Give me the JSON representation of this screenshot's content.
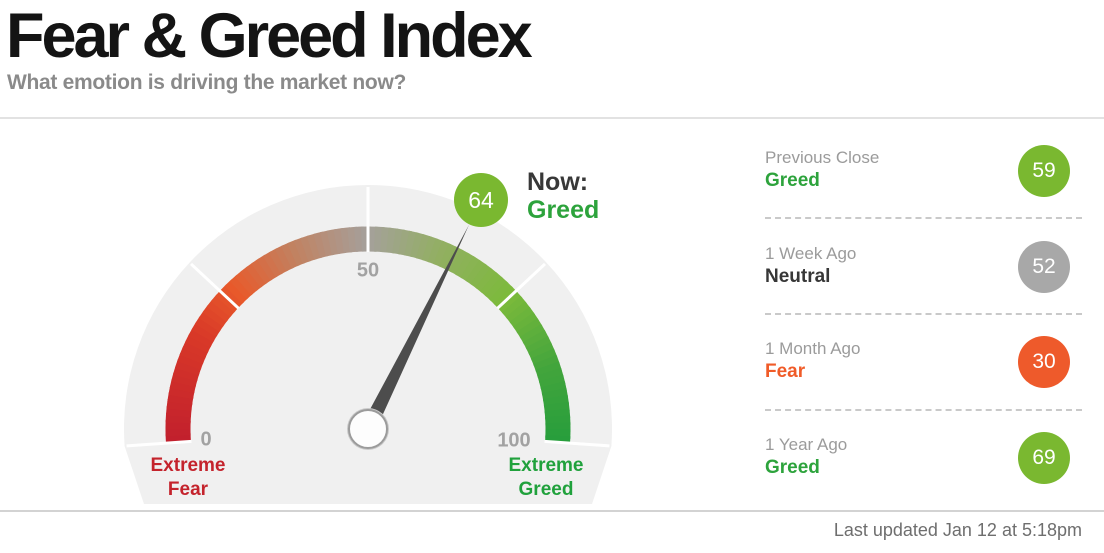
{
  "header": {
    "title": "Fear & Greed Index",
    "subtitle": "What emotion is driving the market now?"
  },
  "gauge": {
    "value": 64,
    "badge_text": "64",
    "now_prefix": "Now:",
    "now_mood": "Greed",
    "tick_min_label": "0",
    "tick_mid_label": "50",
    "tick_max_label": "100",
    "left_caption": "Extreme Fear",
    "right_caption": "Extreme Greed"
  },
  "sidebar": {
    "items": [
      {
        "period": "Previous Close",
        "mood": "Greed",
        "value": "59",
        "mood_color": "#2da33c",
        "circle_color": "#7ab830"
      },
      {
        "period": "1 Week Ago",
        "mood": "Neutral",
        "value": "52",
        "mood_color": "#373737",
        "circle_color": "#a8a8a8"
      },
      {
        "period": "1 Month Ago",
        "mood": "Fear",
        "value": "30",
        "mood_color": "#f05b28",
        "circle_color": "#ee5a2b"
      },
      {
        "period": "1 Year Ago",
        "mood": "Greed",
        "value": "69",
        "mood_color": "#2da33c",
        "circle_color": "#7ab830"
      }
    ]
  },
  "footer": {
    "last_updated": "Last updated Jan 12 at 5:18pm"
  },
  "colors": {
    "badge_green": "#7ab830",
    "now_mood_green": "#2da33c",
    "extreme_fear_text": "#c4232c",
    "extreme_greed_text": "#20a13c",
    "needle": "#4d4d4d",
    "gauge_background": "#f0f0f0",
    "tick": "#ffffff",
    "gradient_stops": [
      {
        "v": 0,
        "c": "#c11f2d"
      },
      {
        "v": 18,
        "c": "#d93928"
      },
      {
        "v": 27,
        "c": "#e85a2b"
      },
      {
        "v": 38,
        "c": "#c28160"
      },
      {
        "v": 50,
        "c": "#a5a09b"
      },
      {
        "v": 62,
        "c": "#92af62"
      },
      {
        "v": 75,
        "c": "#7cba3b"
      },
      {
        "v": 88,
        "c": "#43a53c"
      },
      {
        "v": 100,
        "c": "#279e3c"
      }
    ]
  },
  "chart_data": {
    "type": "gauge",
    "title": "Fear & Greed Index",
    "subtitle": "What emotion is driving the market now?",
    "min": 0,
    "max": 100,
    "tick_values": [
      0,
      25,
      50,
      75,
      100
    ],
    "tick_labels_shown": [
      "0",
      "50",
      "100"
    ],
    "scale_end_labels": [
      "Extreme Fear",
      "Extreme Greed"
    ],
    "current": {
      "value": 64,
      "label": "Greed"
    },
    "history": [
      {
        "period": "Previous Close",
        "label": "Greed",
        "value": 59
      },
      {
        "period": "1 Week Ago",
        "label": "Neutral",
        "value": 52
      },
      {
        "period": "1 Month Ago",
        "label": "Fear",
        "value": 30
      },
      {
        "period": "1 Year Ago",
        "label": "Greed",
        "value": 69
      }
    ],
    "last_updated": "Last updated Jan 12 at 5:18pm",
    "legend": "off",
    "color_scale": "red (fear) to gray (neutral) to green (greed)"
  }
}
